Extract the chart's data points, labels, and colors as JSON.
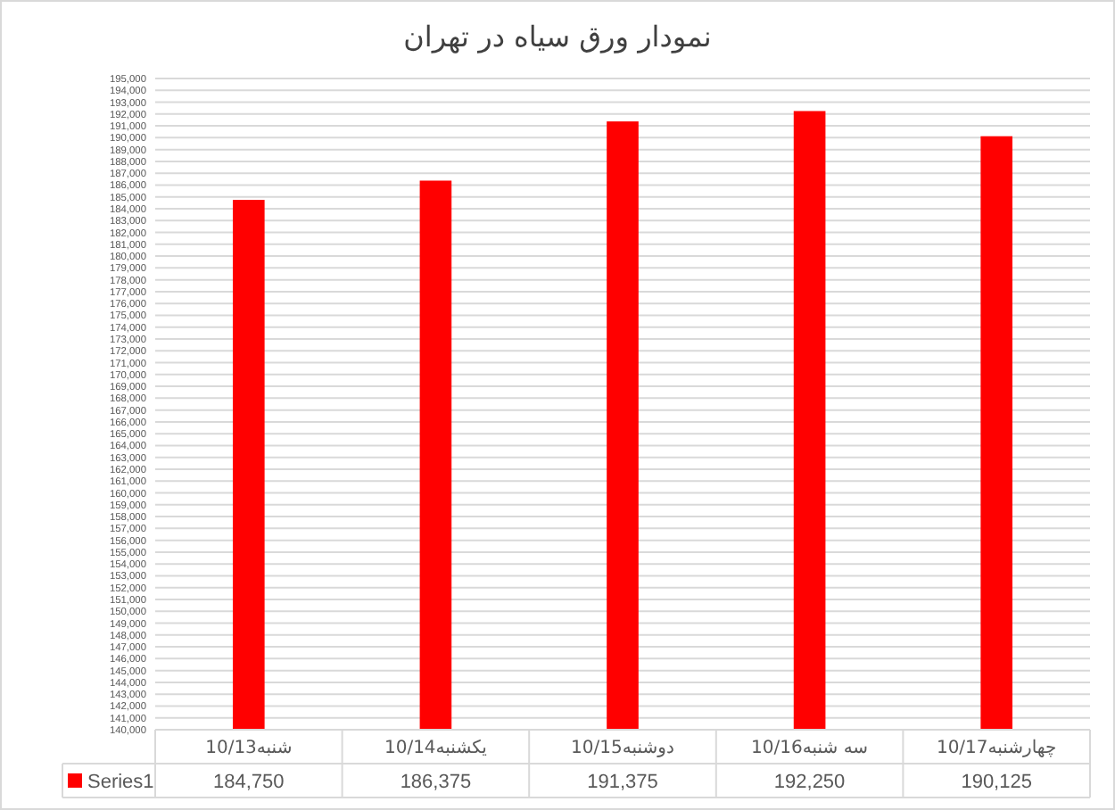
{
  "chart_data": {
    "type": "bar",
    "title": "نمودار ورق سیاه در تهران",
    "categories": [
      "شنبه10/13",
      "یکشنبه10/14",
      "دوشنبه10/15",
      "سه شنبه10/16",
      "چهارشنبه10/17"
    ],
    "series": [
      {
        "name": "Series1",
        "color": "#ff0000",
        "values": [
          184750,
          186375,
          191375,
          192250,
          190125
        ],
        "value_labels": [
          "184,750",
          "186,375",
          "191,375",
          "192,250",
          "190,125"
        ]
      }
    ],
    "ylim": [
      140000,
      195000
    ],
    "yticks": [
      {
        "value": 140000,
        "label": "140,000"
      },
      {
        "value": 141000,
        "label": "141,000"
      },
      {
        "value": 142000,
        "label": "142,000"
      },
      {
        "value": 143000,
        "label": "143,000"
      },
      {
        "value": 144000,
        "label": "144,000"
      },
      {
        "value": 145000,
        "label": "145,000"
      },
      {
        "value": 146000,
        "label": "146,000"
      },
      {
        "value": 147000,
        "label": "147,000"
      },
      {
        "value": 148000,
        "label": "148,000"
      },
      {
        "value": 149000,
        "label": "149,000"
      },
      {
        "value": 150000,
        "label": "150,000"
      },
      {
        "value": 151000,
        "label": "151,000"
      },
      {
        "value": 152000,
        "label": "152,000"
      },
      {
        "value": 153000,
        "label": "153,000"
      },
      {
        "value": 154000,
        "label": "154,000"
      },
      {
        "value": 155000,
        "label": "155,000"
      },
      {
        "value": 156000,
        "label": "156,000"
      },
      {
        "value": 157000,
        "label": "157,000"
      },
      {
        "value": 158000,
        "label": "158,000"
      },
      {
        "value": 159000,
        "label": "159,000"
      },
      {
        "value": 160000,
        "label": "160,000"
      },
      {
        "value": 161000,
        "label": "161,000"
      },
      {
        "value": 162000,
        "label": "162,000"
      },
      {
        "value": 163000,
        "label": "163,000"
      },
      {
        "value": 164000,
        "label": "164,000"
      },
      {
        "value": 165000,
        "label": "165,000"
      },
      {
        "value": 166000,
        "label": "166,000"
      },
      {
        "value": 167000,
        "label": "167,000"
      },
      {
        "value": 168000,
        "label": "168,000"
      },
      {
        "value": 169000,
        "label": "169,000"
      },
      {
        "value": 170000,
        "label": "170,000"
      },
      {
        "value": 171000,
        "label": "171,000"
      },
      {
        "value": 172000,
        "label": "172,000"
      },
      {
        "value": 173000,
        "label": "173,000"
      },
      {
        "value": 174000,
        "label": "174,000"
      },
      {
        "value": 175000,
        "label": "175,000"
      },
      {
        "value": 176000,
        "label": "176,000"
      },
      {
        "value": 177000,
        "label": "177,000"
      },
      {
        "value": 178000,
        "label": "178,000"
      },
      {
        "value": 179000,
        "label": "179,000"
      },
      {
        "value": 180000,
        "label": "180,000"
      },
      {
        "value": 181000,
        "label": "181,000"
      },
      {
        "value": 182000,
        "label": "182,000"
      },
      {
        "value": 183000,
        "label": "183,000"
      },
      {
        "value": 184000,
        "label": "184,000"
      },
      {
        "value": 185000,
        "label": "185,000"
      },
      {
        "value": 186000,
        "label": "186,000"
      },
      {
        "value": 187000,
        "label": "187,000"
      },
      {
        "value": 188000,
        "label": "188,000"
      },
      {
        "value": 189000,
        "label": "189,000"
      },
      {
        "value": 190000,
        "label": "190,000"
      },
      {
        "value": 191000,
        "label": "191,000"
      },
      {
        "value": 192000,
        "label": "192,000"
      },
      {
        "value": 193000,
        "label": "193,000"
      },
      {
        "value": 194000,
        "label": "194,000"
      },
      {
        "value": 195000,
        "label": "195,000"
      }
    ],
    "grid": "y",
    "legend": "bottom"
  }
}
